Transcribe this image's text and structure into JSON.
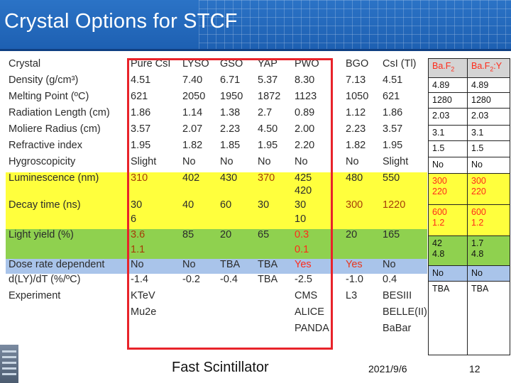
{
  "slide": {
    "title": "Crystal Options for STCF"
  },
  "table": {
    "headers": [
      "Crystal",
      "Pure CsI",
      "LYSO",
      "GSO",
      "YAP",
      "PWO",
      "BGO",
      "CsI (Tl)"
    ],
    "rows": {
      "density": [
        "Density (g/cm³)",
        "4.51",
        "7.40",
        "6.71",
        "5.37",
        "8.30",
        "7.13",
        "4.51"
      ],
      "melting": [
        "Melting Point (ºC)",
        "621",
        "2050",
        "1950",
        "1872",
        "1123",
        "1050",
        "621"
      ],
      "radlen": [
        "Radiation Length (cm)",
        "1.86",
        "1.14",
        "1.38",
        "2.7",
        "0.89",
        "1.12",
        "1.86"
      ],
      "moliere": [
        "Moliere Radius (cm)",
        "3.57",
        "2.07",
        "2.23",
        "4.50",
        "2.00",
        "2.23",
        "3.57"
      ],
      "refr": [
        "Refractive index",
        "1.95",
        "1.82",
        "1.85",
        "1.95",
        "2.20",
        "1.82",
        "1.95"
      ],
      "hygro": [
        "Hygroscopicity",
        "Slight",
        "No",
        "No",
        "No",
        "No",
        "No",
        "Slight"
      ],
      "lum": [
        "Luminescence (nm)",
        "310",
        "402",
        "430",
        "370",
        "425",
        "480",
        "550"
      ],
      "lum2": [
        "",
        "",
        "",
        "",
        "",
        "420",
        "",
        ""
      ],
      "decay": [
        "Decay time (ns)",
        "30",
        "40",
        "60",
        "30",
        "30",
        "300",
        "1220"
      ],
      "decay2": [
        "",
        "6",
        "",
        "",
        "",
        "10",
        "",
        ""
      ],
      "ly": [
        "Light yield (%)",
        "3.6",
        "85",
        "20",
        "65",
        "0.3",
        "20",
        "165"
      ],
      "ly2": [
        "",
        "1.1",
        "",
        "",
        "",
        "0.1",
        "",
        ""
      ],
      "dose": [
        "Dose rate dependent",
        "No",
        "No",
        "TBA",
        "TBA",
        "Yes",
        "Yes",
        "No"
      ],
      "dly": [
        "d(LY)/dT (%/ºC)",
        "-1.4",
        "-0.2",
        "-0.4",
        "TBA",
        "-2.5",
        "-1.0",
        "0.4"
      ],
      "exp1": [
        "Experiment",
        "KTeV",
        "",
        "",
        "",
        "CMS",
        "L3",
        "BESIII"
      ],
      "exp2": [
        "",
        "Mu2e",
        "",
        "",
        "",
        "ALICE",
        "",
        "BELLE(II)"
      ],
      "exp3": [
        "",
        "",
        "",
        "",
        "",
        "PANDA",
        "",
        "BaBar"
      ]
    }
  },
  "baf_table": {
    "headers": [
      "Ba.F",
      "2",
      "Ba.F",
      "2",
      ":Y"
    ],
    "rows": {
      "density": [
        "4.89",
        "4.89"
      ],
      "melting": [
        "1280",
        "1280"
      ],
      "radlen": [
        "2.03",
        "2.03"
      ],
      "moliere": [
        "3.1",
        "3.1"
      ],
      "refr": [
        "1.5",
        "1.5"
      ],
      "hygro": [
        "No",
        "No"
      ],
      "lum": [
        "300",
        "300"
      ],
      "lum2": [
        "220",
        "220"
      ],
      "decay": [
        "600",
        "600"
      ],
      "decay2": [
        "1.2",
        "1.2"
      ],
      "ly": [
        "42",
        "1.7"
      ],
      "ly2": [
        "4.8",
        "4.8"
      ],
      "dose": [
        "No",
        "No"
      ],
      "dly": [
        "TBA",
        "TBA"
      ]
    }
  },
  "footer": {
    "title": "Fast Scintillator",
    "date": "2021/9/6",
    "page": "12"
  }
}
